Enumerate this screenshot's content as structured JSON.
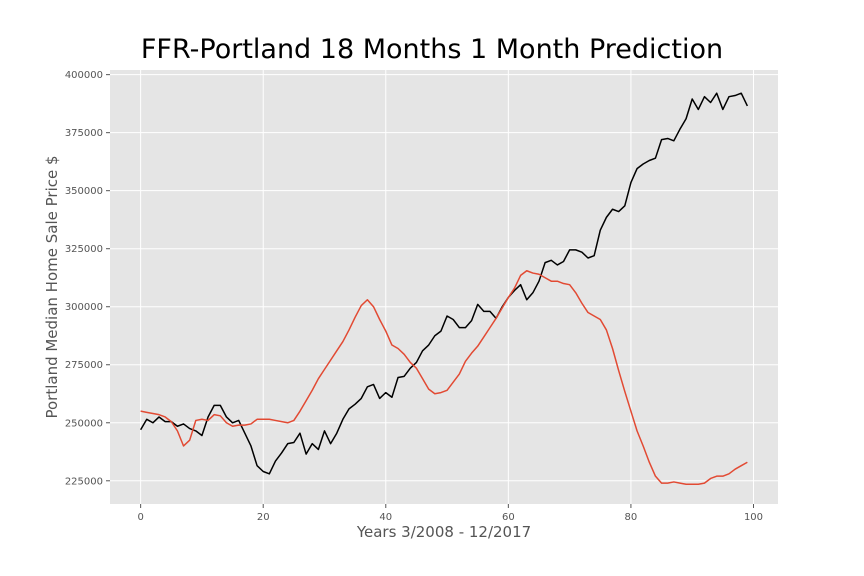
{
  "chart_data": {
    "type": "line",
    "title": "FFR-Portland 18 Months 1 Month Prediction",
    "xlabel": "Years 3/2008 - 12/2017",
    "ylabel": "Portland Median Home Sale Price $",
    "xlim": [
      -5,
      104
    ],
    "ylim": [
      215000,
      402000
    ],
    "xticks": [
      0,
      20,
      40,
      60,
      80,
      100
    ],
    "yticks": [
      225000,
      250000,
      275000,
      300000,
      325000,
      350000,
      375000,
      400000
    ],
    "grid": true,
    "series": [
      {
        "color": "#000000",
        "values": [
          247000,
          251500,
          250000,
          252500,
          250500,
          250500,
          248500,
          249500,
          247500,
          246500,
          244500,
          252500,
          257500,
          257500,
          252500,
          250000,
          251000,
          245500,
          240000,
          231500,
          229000,
          228000,
          233500,
          237000,
          241000,
          241500,
          245500,
          236500,
          241000,
          238500,
          246500,
          241000,
          245500,
          251500,
          256000,
          258000,
          260500,
          265500,
          266500,
          260500,
          263000,
          261000,
          269500,
          270000,
          273500,
          276000,
          281000,
          283500,
          287500,
          289500,
          296000,
          294500,
          291000,
          291000,
          294000,
          301000,
          298000,
          298000,
          295000,
          300000,
          304000,
          307000,
          309500,
          303000,
          306000,
          311000,
          319000,
          320000,
          318000,
          319500,
          324500,
          324500,
          323500,
          321000,
          322000,
          333000,
          338500,
          342000,
          341000,
          343500,
          353500,
          359500,
          361500,
          363000,
          364000,
          372000,
          372500,
          371500,
          376500,
          381000,
          389500,
          385000,
          390500,
          388000,
          392000,
          385000,
          390500,
          391000,
          392000,
          386500
        ]
      },
      {
        "color": "#e24a33",
        "values": [
          255000,
          254500,
          254000,
          253500,
          252500,
          250500,
          246500,
          240000,
          242500,
          251000,
          251500,
          251000,
          253500,
          253000,
          250000,
          248500,
          249000,
          249000,
          249500,
          251500,
          251500,
          251500,
          251000,
          250500,
          250000,
          251000,
          255000,
          259500,
          264000,
          269000,
          273000,
          277000,
          281000,
          285000,
          290000,
          295500,
          300500,
          303000,
          300000,
          294500,
          289500,
          283500,
          282000,
          279500,
          276000,
          273500,
          269000,
          264500,
          262500,
          263000,
          264000,
          267500,
          271000,
          276500,
          280000,
          283000,
          287000,
          291000,
          295000,
          299500,
          304000,
          308000,
          313500,
          315500,
          314500,
          314000,
          312500,
          311000,
          311000,
          310000,
          309500,
          306000,
          301500,
          297500,
          296000,
          294500,
          290000,
          282000,
          272500,
          263500,
          255000,
          246500,
          240000,
          233000,
          227000,
          224000,
          224000,
          224500,
          224000,
          223500,
          223500,
          223500,
          224000,
          226000,
          227000,
          227000,
          228000,
          230000,
          231500,
          233000
        ]
      }
    ]
  }
}
